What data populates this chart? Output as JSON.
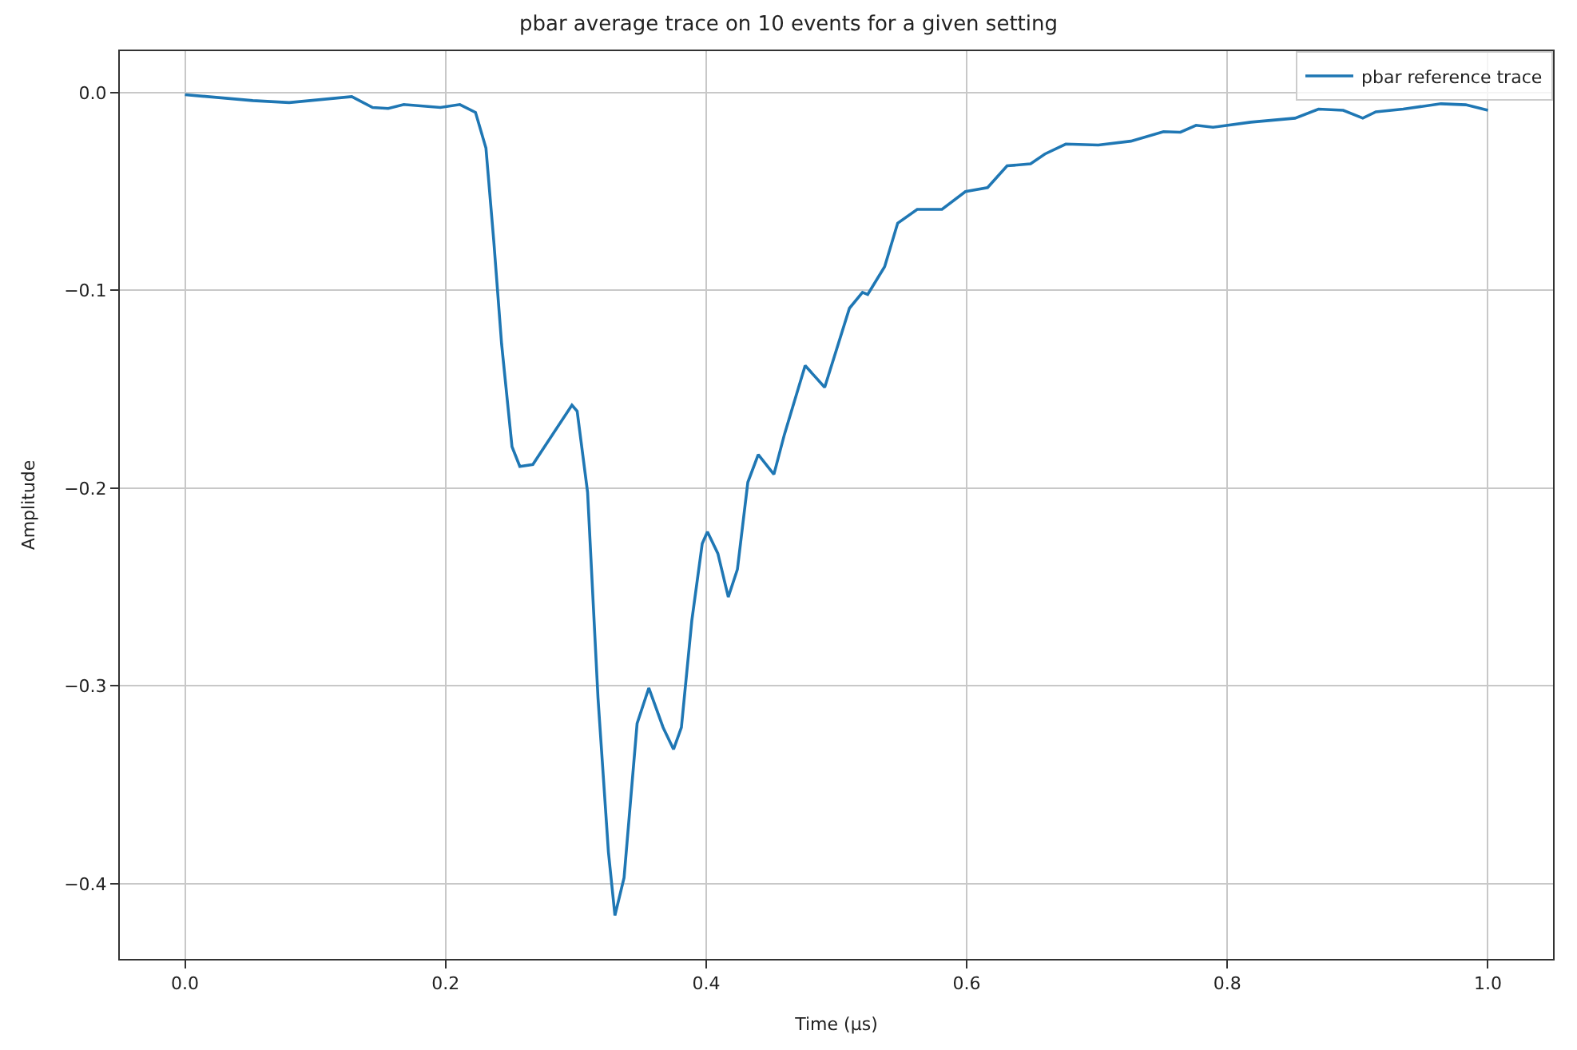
{
  "chart_data": {
    "type": "line",
    "title": "pbar average trace on 10 events for a given setting",
    "xlabel": "Time (µs)",
    "ylabel": "Amplitude",
    "series": [
      {
        "name": "pbar reference trace",
        "color": "#1f77b4",
        "x": [
          0,
          0.052,
          0.08,
          0.128,
          0.144,
          0.156,
          0.168,
          0.196,
          0.211,
          0.223,
          0.231,
          0.237,
          0.243,
          0.251,
          0.257,
          0.267,
          0.279,
          0.297,
          0.301,
          0.309,
          0.317,
          0.325,
          0.33,
          0.337,
          0.347,
          0.356,
          0.367,
          0.375,
          0.381,
          0.389,
          0.397,
          0.401,
          0.409,
          0.417,
          0.424,
          0.432,
          0.44,
          0.452,
          0.46,
          0.476,
          0.491,
          0.51,
          0.52,
          0.524,
          0.537,
          0.547,
          0.562,
          0.581,
          0.599,
          0.616,
          0.631,
          0.649,
          0.66,
          0.676,
          0.701,
          0.726,
          0.751,
          0.764,
          0.776,
          0.789,
          0.818,
          0.852,
          0.87,
          0.889,
          0.904,
          0.914,
          0.935,
          0.964,
          0.983,
          1.0
        ],
        "values": [
          -0.001,
          -0.004,
          -0.005,
          -0.002,
          -0.0075,
          -0.008,
          -0.006,
          -0.0075,
          -0.006,
          -0.01,
          -0.028,
          -0.075,
          -0.127,
          -0.179,
          -0.189,
          -0.188,
          -0.176,
          -0.158,
          -0.161,
          -0.202,
          -0.306,
          -0.384,
          -0.416,
          -0.397,
          -0.319,
          -0.301,
          -0.321,
          -0.332,
          -0.321,
          -0.267,
          -0.228,
          -0.222,
          -0.233,
          -0.255,
          -0.241,
          -0.197,
          -0.183,
          -0.193,
          -0.173,
          -0.138,
          -0.149,
          -0.109,
          -0.101,
          -0.102,
          -0.088,
          -0.066,
          -0.059,
          -0.059,
          -0.05,
          -0.048,
          -0.037,
          -0.036,
          -0.031,
          -0.026,
          -0.0265,
          -0.0245,
          -0.0197,
          -0.02,
          -0.0165,
          -0.0175,
          -0.0149,
          -0.0129,
          -0.0083,
          -0.0089,
          -0.0129,
          -0.0097,
          -0.0083,
          -0.0056,
          -0.0061,
          -0.0089
        ]
      }
    ],
    "xlim": [
      -0.05,
      1.05
    ],
    "ylim": [
      -0.438,
      0.021
    ],
    "xticks": [
      {
        "value": 0,
        "label": "0.0"
      },
      {
        "value": 0.2,
        "label": "0.2"
      },
      {
        "value": 0.4,
        "label": "0.4"
      },
      {
        "value": 0.6,
        "label": "0.6"
      },
      {
        "value": 0.8,
        "label": "0.8"
      },
      {
        "value": 1,
        "label": "1.0"
      }
    ],
    "yticks": [
      {
        "value": 0,
        "label": "0.0"
      },
      {
        "value": -0.1,
        "label": "−0.1"
      },
      {
        "value": -0.2,
        "label": "−0.2"
      },
      {
        "value": -0.3,
        "label": "−0.3"
      },
      {
        "value": -0.4,
        "label": "−0.4"
      }
    ],
    "grid": true,
    "legend": "top right",
    "marker": "none",
    "line_style": "solid"
  }
}
